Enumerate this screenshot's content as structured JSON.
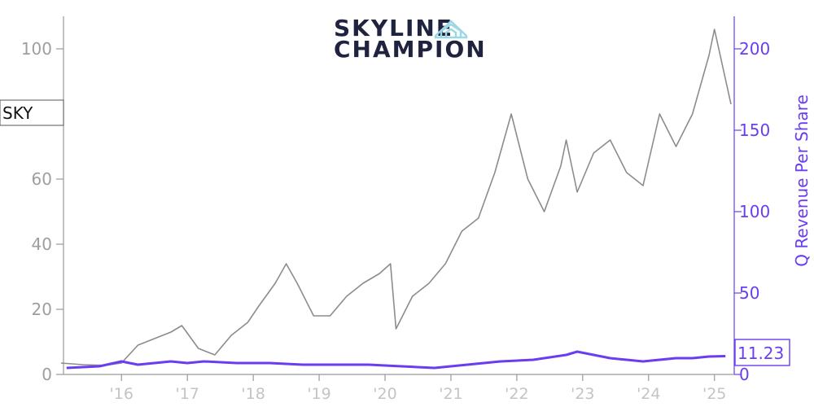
{
  "chart_data": {
    "type": "line",
    "ticker": "SKY",
    "logo": {
      "line1": "SKYLINE",
      "line2": "CHAMPION"
    },
    "ylabel_right": "Q Revenue Per Share",
    "x_ticks": [
      "'16",
      "'17",
      "'18",
      "'19",
      "'20",
      "'21",
      "'22",
      "'23",
      "'24",
      "'25"
    ],
    "y_left": {
      "lim": [
        0,
        110
      ],
      "ticks": [
        0,
        20,
        40,
        60,
        100
      ],
      "color": "#9e9e9e"
    },
    "y_right": {
      "lim": [
        0,
        220
      ],
      "ticks": [
        0,
        50,
        100,
        150,
        200
      ],
      "color": "#6a3df0"
    },
    "last_value_label": "11.23",
    "series": [
      {
        "axis": "left",
        "color": "#8c8c8c",
        "x": [
          "2015-02",
          "2015-06",
          "2015-10",
          "2016-01",
          "2016-04",
          "2016-07",
          "2016-10",
          "2016-12",
          "2017-03",
          "2017-06",
          "2017-09",
          "2017-12",
          "2018-02",
          "2018-05",
          "2018-07",
          "2018-09",
          "2018-12",
          "2019-03",
          "2019-06",
          "2019-09",
          "2019-12",
          "2020-02",
          "2020-03",
          "2020-06",
          "2020-09",
          "2020-12",
          "2021-03",
          "2021-06",
          "2021-09",
          "2021-12",
          "2022-03",
          "2022-06",
          "2022-09",
          "2022-10",
          "2022-12",
          "2023-03",
          "2023-06",
          "2023-09",
          "2023-12",
          "2024-03",
          "2024-06",
          "2024-09",
          "2024-12",
          "2025-01",
          "2025-04"
        ],
        "y": [
          3.5,
          3.0,
          2.8,
          3.5,
          9.0,
          11.0,
          13.0,
          15.0,
          8.0,
          6.0,
          12.0,
          16.0,
          21.0,
          28.0,
          34.0,
          28.0,
          18.0,
          18.0,
          24.0,
          28.0,
          31.0,
          34.0,
          14.0,
          24.0,
          28.0,
          34.0,
          44.0,
          48.0,
          62.0,
          80.0,
          60.0,
          50.0,
          64.0,
          72.0,
          56.0,
          68.0,
          72.0,
          62.0,
          58.0,
          80.0,
          70.0,
          80.0,
          98.0,
          106.0,
          83.0
        ]
      },
      {
        "axis": "right",
        "color": "#6a3df0",
        "x": [
          "2015-03",
          "2015-09",
          "2016-01",
          "2016-04",
          "2016-10",
          "2017-01",
          "2017-04",
          "2017-10",
          "2018-04",
          "2018-10",
          "2019-04",
          "2019-10",
          "2020-04",
          "2020-10",
          "2021-04",
          "2021-10",
          "2022-04",
          "2022-10",
          "2022-12",
          "2023-03",
          "2023-06",
          "2023-09",
          "2023-12",
          "2024-03",
          "2024-06",
          "2024-09",
          "2024-12",
          "2025-03"
        ],
        "y": [
          4,
          5,
          8,
          6,
          8,
          7,
          8,
          7,
          7,
          6,
          6,
          6,
          5,
          4,
          6,
          8,
          9,
          12,
          14,
          12,
          10,
          9,
          8,
          9,
          10,
          10,
          11,
          11.23
        ]
      }
    ]
  }
}
